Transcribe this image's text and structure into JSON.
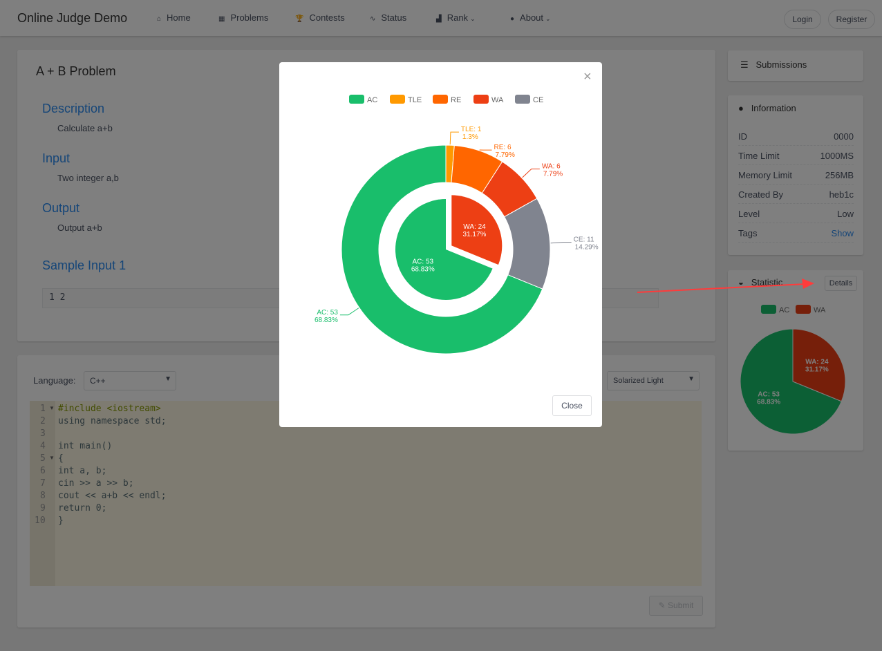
{
  "header": {
    "brand": "Online Judge Demo",
    "nav": [
      "Home",
      "Problems",
      "Contests",
      "Status",
      "Rank",
      "About"
    ],
    "login": "Login",
    "register": "Register"
  },
  "problem": {
    "title": "A + B Problem",
    "sections": [
      {
        "heading": "Description",
        "text": "Calculate a+b"
      },
      {
        "heading": "Input",
        "text": "Two integer a,b"
      },
      {
        "heading": "Output",
        "text": "Output a+b"
      }
    ],
    "sample_heading": "Sample Input 1",
    "sample": "1 2"
  },
  "editor": {
    "language_label": "Language:",
    "language": "C++",
    "theme": "Solarized Light",
    "line_numbers": [
      1,
      2,
      3,
      4,
      5,
      6,
      7,
      8,
      9,
      10
    ],
    "lines": [
      "#include <iostream>",
      "using namespace std;",
      null,
      "int main()",
      "{",
      "  int a, b;",
      "  cin >> a >> b;",
      "  cout << a+b << endl;",
      "  return 0;",
      "}"
    ],
    "submit": "Submit"
  },
  "sidebar": {
    "submissions": "Submissions",
    "information": "Information",
    "info_rows": [
      [
        "ID",
        "0000"
      ],
      [
        "Time Limit",
        "1000MS"
      ],
      [
        "Memory Limit",
        "256MB"
      ],
      [
        "Created By",
        "heb1c"
      ],
      [
        "Level",
        "Low"
      ],
      [
        "Tags",
        "Show"
      ]
    ],
    "statistic": "Statistic",
    "details": "Details"
  },
  "modal": {
    "close": "Close"
  },
  "chart_data": [
    {
      "type": "doughnut",
      "categories": [
        "AC",
        "TLE",
        "RE",
        "WA",
        "CE"
      ],
      "colors": [
        "#19be6b",
        "#ff9900",
        "#ff6600",
        "#ed3f14",
        "#80848f"
      ],
      "values": [
        53,
        1,
        6,
        6,
        11
      ],
      "value_labels": [
        "AC: 53",
        "TLE: 1",
        "RE: 6",
        "WA: 6",
        "CE: 11"
      ],
      "percent_labels": [
        "68.83%",
        "1.3%",
        "7.79%",
        "7.79%",
        "14.29%"
      ],
      "inner_values": [
        53,
        24
      ],
      "inner_colors": [
        "#19be6b",
        "#ed3f14"
      ],
      "inner_value_labels": [
        "AC: 53",
        "WA: 24"
      ],
      "inner_percent_labels": [
        "68.83%",
        "31.17%"
      ]
    },
    {
      "type": "pie",
      "categories": [
        "AC",
        "WA"
      ],
      "colors": [
        "#19be6b",
        "#ed3f14"
      ],
      "values": [
        53,
        24
      ],
      "value_labels": [
        "AC: 53",
        "WA: 24"
      ],
      "percent_labels": [
        "68.83%",
        "31.17%"
      ]
    }
  ]
}
